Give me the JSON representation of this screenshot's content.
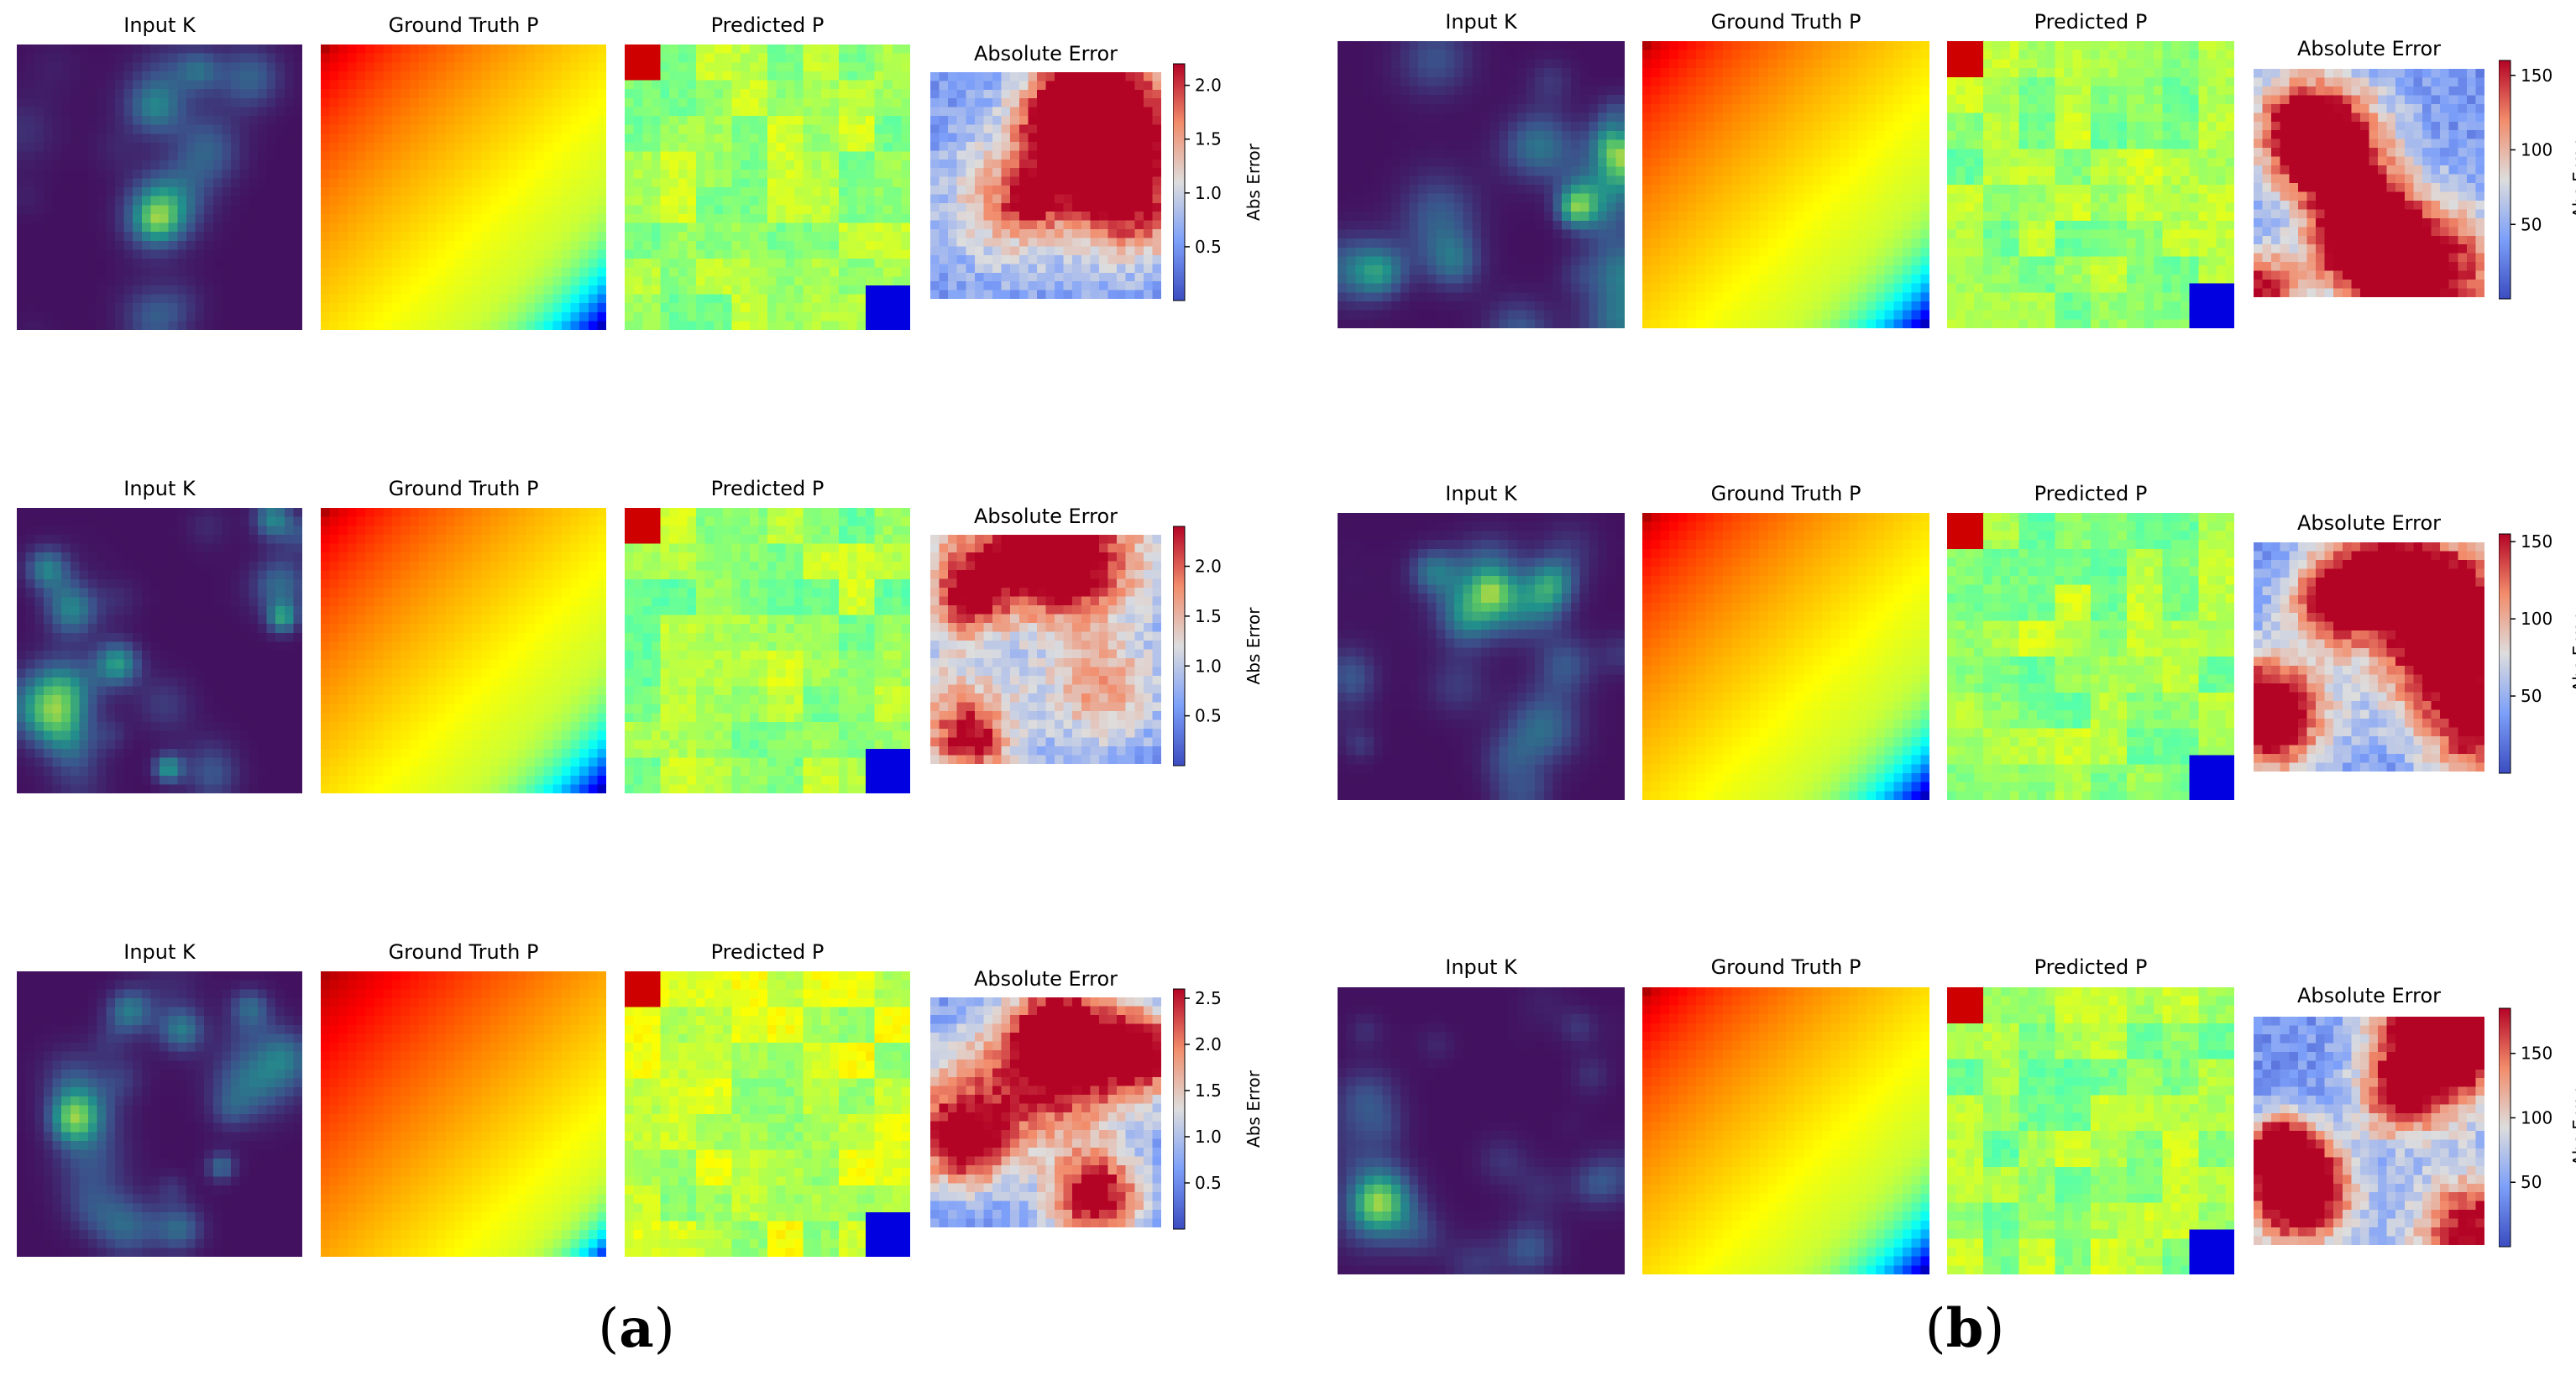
{
  "figure": {
    "captions": {
      "a": "(a)",
      "b": "(b)"
    }
  },
  "chart_data": {
    "type": "heatmap",
    "panels": [
      {
        "id": "a",
        "caption": "(a)",
        "rows": [
          {
            "titles": [
              "Input K",
              "Ground Truth P",
              "Predicted P",
              "Absolute Error"
            ],
            "colorbar": {
              "label": "Abs Error",
              "ticks": [
                "0.5",
                "1.0",
                "1.5",
                "2.0"
              ],
              "range": [
                0,
                2.2
              ]
            }
          },
          {
            "titles": [
              "Input K",
              "Ground Truth P",
              "Predicted P",
              "Absolute Error"
            ],
            "colorbar": {
              "label": "Abs Error",
              "ticks": [
                "0.5",
                "1.0",
                "1.5",
                "2.0"
              ],
              "range": [
                0,
                2.4
              ]
            }
          },
          {
            "titles": [
              "Input K",
              "Ground Truth P",
              "Predicted P",
              "Absolute Error"
            ],
            "colorbar": {
              "label": "Abs Error",
              "ticks": [
                "0.5",
                "1.0",
                "1.5",
                "2.0",
                "2.5"
              ],
              "range": [
                0,
                2.6
              ]
            }
          }
        ]
      },
      {
        "id": "b",
        "caption": "(b)",
        "rows": [
          {
            "titles": [
              "Input K",
              "Ground Truth P",
              "Predicted P",
              "Absolute Error"
            ],
            "colorbar": {
              "label": "Abs Error",
              "ticks": [
                "50",
                "100",
                "150"
              ],
              "range": [
                0,
                160
              ]
            }
          },
          {
            "titles": [
              "Input K",
              "Ground Truth P",
              "Predicted P",
              "Absolute Error"
            ],
            "colorbar": {
              "label": "Abs Error",
              "ticks": [
                "50",
                "100",
                "150"
              ],
              "range": [
                0,
                155
              ]
            }
          },
          {
            "titles": [
              "Input K",
              "Ground Truth P",
              "Predicted P",
              "Absolute Error"
            ],
            "colorbar": {
              "label": "Abs Error",
              "ticks": [
                "50",
                "100",
                "150"
              ],
              "range": [
                0,
                185
              ]
            }
          }
        ]
      }
    ]
  }
}
